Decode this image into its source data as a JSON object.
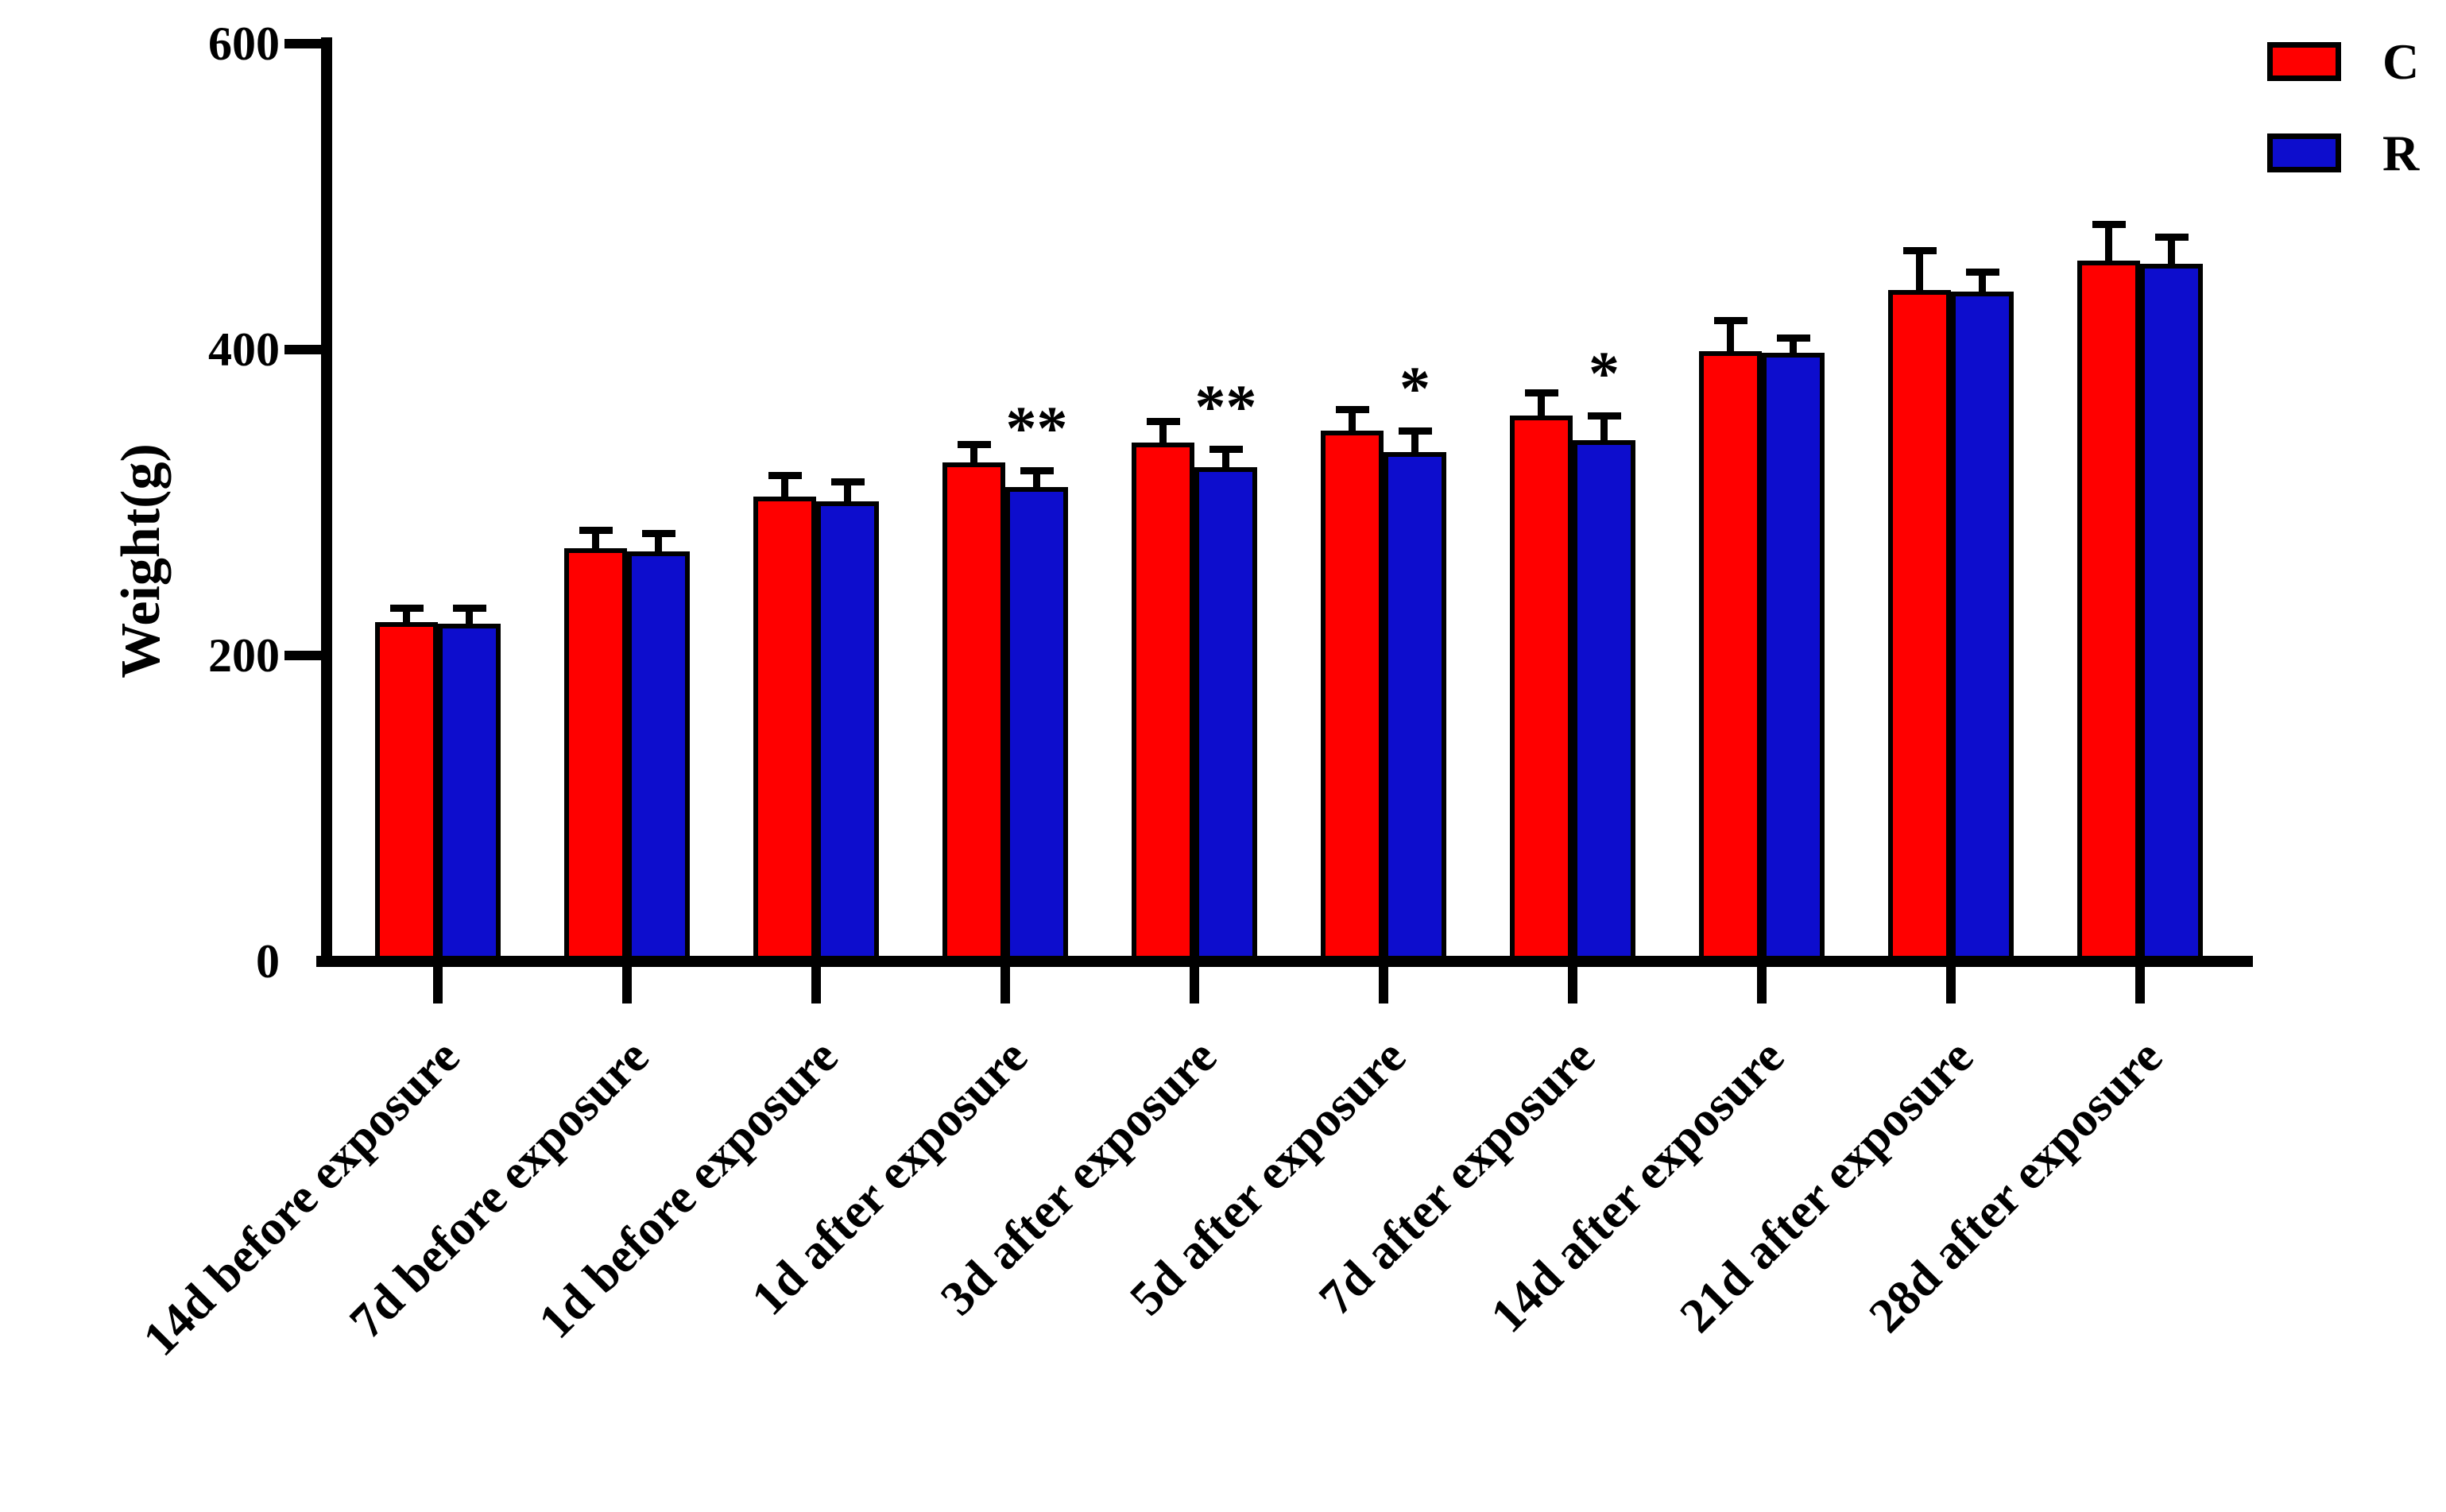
{
  "chart_data": {
    "type": "bar",
    "title": "",
    "xlabel": "",
    "ylabel": "Weight(g)",
    "ylim": [
      0,
      600
    ],
    "yticks": [
      0,
      200,
      400,
      600
    ],
    "grid": false,
    "legend_position": "top-right",
    "error_bars": "upper-only-with-cap",
    "axis_color": "#000000",
    "background_color": "#ffffff",
    "categories": [
      "14d before exposure",
      "7d before exposure",
      "1d before exposure",
      "1d after exposure",
      "3d after exposure",
      "5d after exposure",
      "7d after exposure",
      "14d after exposure",
      "21d after exposure",
      "28d after exposure"
    ],
    "series": [
      {
        "name": "C",
        "color": "#FF0000",
        "values": [
          222,
          270,
          304,
          326,
          339,
          347,
          357,
          399,
          439,
          458
        ],
        "errors": [
          9,
          12,
          14,
          12,
          14,
          14,
          15,
          20,
          26,
          24
        ]
      },
      {
        "name": "R",
        "color": "#0D0DCD",
        "values": [
          221,
          268,
          301,
          310,
          323,
          333,
          341,
          398,
          438,
          456
        ],
        "errors": [
          10,
          12,
          13,
          11,
          12,
          14,
          16,
          10,
          13,
          18
        ]
      }
    ],
    "annotations": [
      {
        "category_index": 3,
        "category": "1d after exposure",
        "series": "R",
        "text": "**"
      },
      {
        "category_index": 4,
        "category": "3d after exposure",
        "series": "R",
        "text": "**"
      },
      {
        "category_index": 5,
        "category": "5d after exposure",
        "series": "R",
        "text": "*"
      },
      {
        "category_index": 6,
        "category": "7d after exposure",
        "series": "R",
        "text": "*"
      }
    ]
  }
}
